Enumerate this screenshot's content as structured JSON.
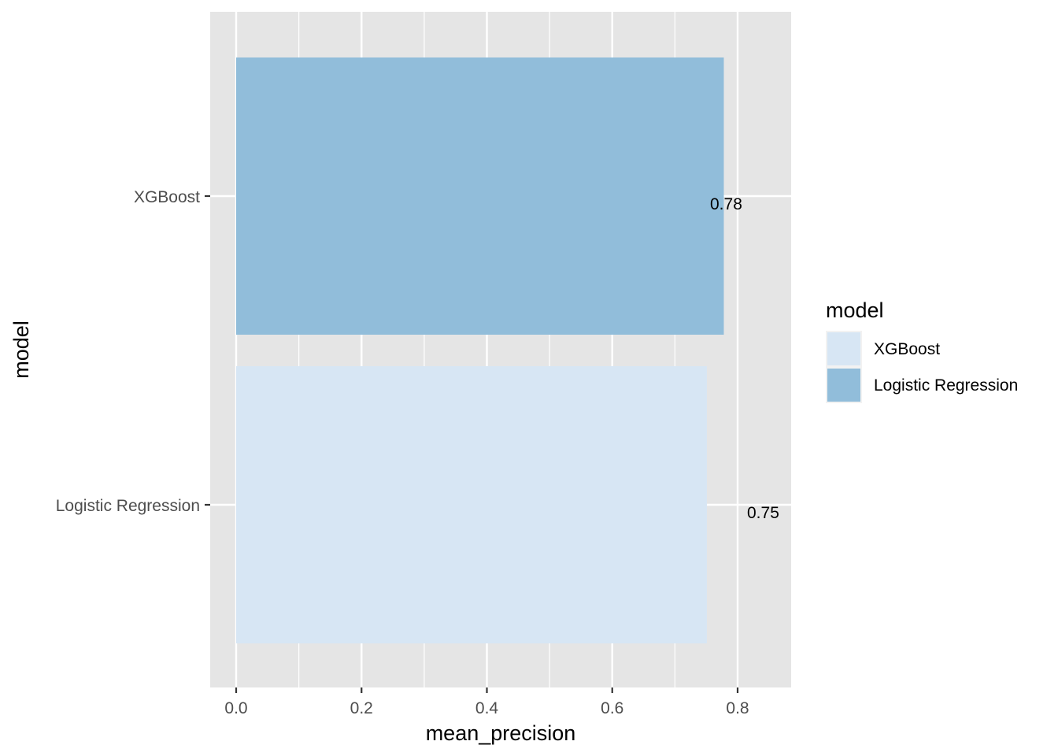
{
  "chart_data": {
    "type": "bar",
    "orientation": "horizontal",
    "categories": [
      "Logistic Regression",
      "XGBoost"
    ],
    "values": [
      0.778,
      0.751
    ],
    "data_labels": [
      "0.78",
      "0.75"
    ],
    "colors": [
      "#91bdda",
      "#d7e6f4"
    ],
    "title": "",
    "xlabel": "mean_precision",
    "ylabel": "model",
    "xlim": [
      -0.05,
      0.88
    ],
    "xticks": [
      0.0,
      0.2,
      0.4,
      0.6,
      0.8
    ],
    "xtick_labels": [
      "0.0",
      "0.2",
      "0.4",
      "0.6",
      "0.8"
    ],
    "grid": true,
    "panel_background": "#e5e5e5",
    "legend": {
      "title": "model",
      "position": "right",
      "items": [
        {
          "label": "XGBoost",
          "color": "#d7e6f4"
        },
        {
          "label": "Logistic Regression",
          "color": "#91bdda"
        }
      ]
    }
  }
}
